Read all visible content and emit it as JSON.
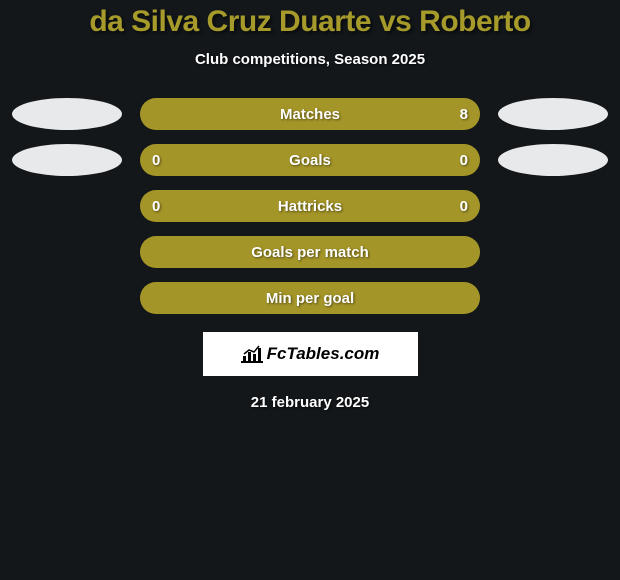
{
  "title": {
    "player1": "da Silva Cruz Duarte",
    "vs": "vs",
    "player2": "Roberto",
    "color": "#a69a2a"
  },
  "subtitle": "Club competitions, Season 2025",
  "ellipse_color": "#e8e9ea",
  "rows": [
    {
      "label": "Matches",
      "left_value": "",
      "right_value": "8",
      "bar_color": "#a49528",
      "show_left_ellipse": true,
      "show_right_ellipse": true
    },
    {
      "label": "Goals",
      "left_value": "0",
      "right_value": "0",
      "bar_color": "#a49528",
      "show_left_ellipse": true,
      "show_right_ellipse": true
    },
    {
      "label": "Hattricks",
      "left_value": "0",
      "right_value": "0",
      "bar_color": "#a49528",
      "show_left_ellipse": false,
      "show_right_ellipse": false
    },
    {
      "label": "Goals per match",
      "left_value": "",
      "right_value": "",
      "bar_color": "#a49528",
      "show_left_ellipse": false,
      "show_right_ellipse": false
    },
    {
      "label": "Min per goal",
      "left_value": "",
      "right_value": "",
      "bar_color": "#a49528",
      "show_left_ellipse": false,
      "show_right_ellipse": false
    }
  ],
  "logo": {
    "text": "FcTables.com",
    "background": "#ffffff"
  },
  "date": "21 february 2025",
  "background_color": "#13171a"
}
